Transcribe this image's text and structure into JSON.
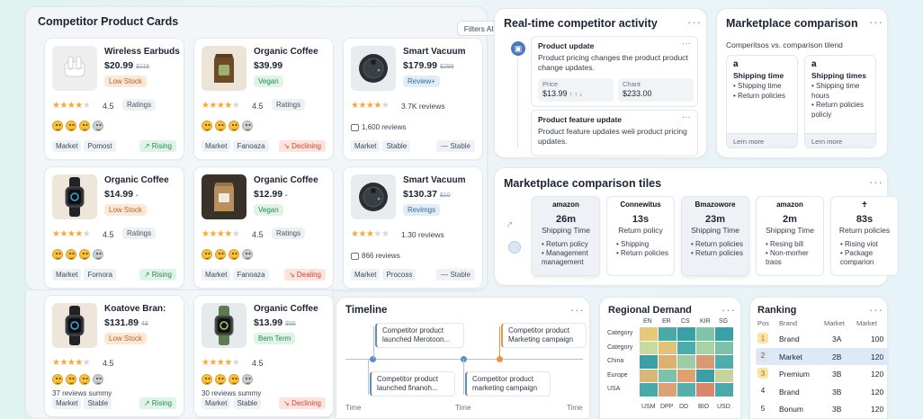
{
  "panels": {
    "cards_title": "Competitor Product Cards",
    "filters_label": "Filters All",
    "activity_title": "Real-time competitor activity",
    "compare_title": "Marketplace comparison",
    "tiles_title": "Marketplace comparison tiles",
    "timeline_title": "Timeline",
    "regional_title": "Regional Demand",
    "ranking_title": "Ranking"
  },
  "cards": [
    {
      "name": "Wireless Earbuds",
      "price": "$20.99",
      "old": "$115",
      "tag": "Low Stock",
      "tag_kind": "warn",
      "rating": "4.5",
      "stars": 4,
      "rating_chip": "Ratings",
      "sub": "",
      "foot1": "Market",
      "foot2": "Pomost",
      "trend": "↗ Rising",
      "trend_kind": "up",
      "thumb": "earbuds"
    },
    {
      "name": "Organic Coffee",
      "price": "$39.99",
      "old": "",
      "tag": "Vegan",
      "tag_kind": "good",
      "rating": "4.5",
      "stars": 4,
      "rating_chip": "Ratings",
      "sub": "",
      "foot1": "Market",
      "foot2": "Fanoaza",
      "trend": "↘ Declining",
      "trend_kind": "down",
      "thumb": "coffee"
    },
    {
      "name": "Smart Vacuum",
      "price": "$179.99",
      "old": "$299",
      "tag": "Review+",
      "tag_kind": "info",
      "rating": "",
      "stars": 4,
      "rating_chip": "",
      "rating_text": "3.7K reviews",
      "sub": "1,600 reviews",
      "foot1": "Market",
      "foot2": "Stable",
      "trend": "— Stable",
      "trend_kind": "flat",
      "thumb": "vacuum"
    },
    {
      "name": "Organic Coffee",
      "price": "$14.99",
      "old": "-",
      "tag": "Low Stock",
      "tag_kind": "warn",
      "rating": "4.5",
      "stars": 4,
      "rating_chip": "Ratings",
      "sub": "",
      "foot1": "Market",
      "foot2": "Fomora",
      "trend": "↗ Rising",
      "trend_kind": "up",
      "thumb": "watch"
    },
    {
      "name": "Organic Coffee",
      "price": "$12.99",
      "old": "-",
      "tag": "Vegan",
      "tag_kind": "good",
      "rating": "4.5",
      "stars": 4,
      "rating_chip": "Ratings",
      "sub": "",
      "foot1": "Market",
      "foot2": "Fanoaza",
      "trend": "↘ Dealing",
      "trend_kind": "down",
      "thumb": "coffee-dark"
    },
    {
      "name": "Smart Vacuum",
      "price": "$130.37",
      "old": "$10",
      "tag": "Revimgs",
      "tag_kind": "info",
      "rating": "",
      "stars": 3,
      "rating_chip": "",
      "rating_text": "1.30 reviews",
      "sub": "866 reviews",
      "foot1": "Market",
      "foot2": "Procoss",
      "trend": "— Stable",
      "trend_kind": "flat",
      "thumb": "vacuum"
    },
    {
      "name": "Koatove Bran:",
      "price": "$131.89",
      "old": "48",
      "tag": "Low Stock",
      "tag_kind": "warn",
      "rating": "4.5",
      "stars": 4,
      "rating_chip": "",
      "sub": "37 reviews summy",
      "foot1": "Market",
      "foot2": "Stable",
      "trend": "↗ Rising",
      "trend_kind": "up",
      "thumb": "watch"
    },
    {
      "name": "Organic Coffee",
      "price": "$13.99",
      "old": "$55",
      "tag": "Bem Term",
      "tag_kind": "good",
      "rating": "4.5",
      "stars": 4,
      "rating_chip": "",
      "sub": "30 reviews summy",
      "foot1": "Market",
      "foot2": "Stable",
      "trend": "↘ Declining",
      "trend_kind": "down",
      "thumb": "watch-green"
    }
  ],
  "activity": [
    {
      "title": "Product update",
      "desc": "Product pricing changes the product product change updates.",
      "price_label": "Price",
      "price_value": "$13.99",
      "price_delta": "↑ ↑ ↓",
      "chant_label": "Chant",
      "chant_value": "$233.00"
    },
    {
      "title": "Product feature update",
      "desc": "Product feature updates weli product pricing updates."
    }
  ],
  "compare": {
    "subtitle": "Comperitsos vs. comparison tilend",
    "boxes": [
      {
        "logo": "a",
        "title": "Shipping time",
        "items": [
          "Shipping time",
          "Return policies"
        ],
        "more": "Lern more"
      },
      {
        "logo": "a",
        "title": "Shipping times",
        "items": [
          "Shipping time hours",
          "Return policies policiy"
        ],
        "more": "Lern more"
      }
    ]
  },
  "tiles": [
    {
      "logo": "amazon",
      "big": "26m",
      "label": "Shipping Time",
      "items": [
        "Return policy",
        "Management management"
      ],
      "selected": true
    },
    {
      "logo": "Connewitus",
      "big": "13s",
      "label": "Return policy",
      "items": [
        "Shipping",
        "Return policies"
      ],
      "selected": false
    },
    {
      "logo": "Bmazowore",
      "big": "23m",
      "label": "Shipping Time",
      "items": [
        "Return policies",
        "Return policies"
      ],
      "selected": true
    },
    {
      "logo": "amazon",
      "big": "2m",
      "label": "Shipping Time",
      "items": [
        "Resing bill",
        "Non-morher traos"
      ],
      "selected": false
    },
    {
      "logo": "☥",
      "big": "83s",
      "label": "Return policies",
      "items": [
        "Rising viot",
        "Package comparion"
      ],
      "selected": false
    }
  ],
  "timeline": {
    "items": [
      "Competitor product launched Merotoon...",
      "Competitor product Marketing campaign",
      "Competitor product launched finanoh...",
      "Competitor product marketing campaign"
    ],
    "axis": [
      "Time",
      "Time",
      "Time"
    ]
  },
  "regional": {
    "cols": [
      "EN",
      "ER",
      "CS",
      "KIR",
      "SG"
    ],
    "rows": [
      "Category",
      "Category",
      "China",
      "Europe",
      "USA"
    ],
    "xlabels": [
      "USM",
      "DPP",
      "DD",
      "BIO",
      "USD"
    ],
    "colors": [
      [
        "#e7c878",
        "#4ba9a6",
        "#3aa0a6",
        "#80c3a8",
        "#3aa0a6"
      ],
      [
        "#c5dba0",
        "#e3c178",
        "#4cacaa",
        "#a8d3a6",
        "#7fc0a8"
      ],
      [
        "#3aa0a6",
        "#e0b070",
        "#9dcda4",
        "#d89a74",
        "#4fadab"
      ],
      [
        "#d8b878",
        "#7dc1aa",
        "#e1a070",
        "#3c9fa6",
        "#c4d49a"
      ],
      [
        "#4aa9aa",
        "#dba276",
        "#55b0ad",
        "#d9866a",
        "#4ba9a9"
      ]
    ]
  },
  "ranking": {
    "headers": [
      "Pos",
      "Brand",
      "Market",
      "Market"
    ],
    "rows": [
      {
        "pos": "1",
        "brand": "Brand",
        "m1": "3A",
        "m2": "100",
        "badge": "#fbe3a8",
        "bcolor": "#a77515"
      },
      {
        "pos": "2",
        "brand": "Market",
        "m1": "2B",
        "m2": "120",
        "badge": "#dfe4ea",
        "bcolor": "#4a5563",
        "highlight": true
      },
      {
        "pos": "3",
        "brand": "Premium",
        "m1": "3B",
        "m2": "120",
        "badge": "#fbe3a8",
        "bcolor": "#a77515"
      },
      {
        "pos": "4",
        "brand": "Brand",
        "m1": "3B",
        "m2": "120",
        "badge": "",
        "bcolor": "#1b2430"
      },
      {
        "pos": "5",
        "brand": "Bonum",
        "m1": "3B",
        "m2": "120",
        "badge": "",
        "bcolor": "#1b2430"
      }
    ]
  }
}
